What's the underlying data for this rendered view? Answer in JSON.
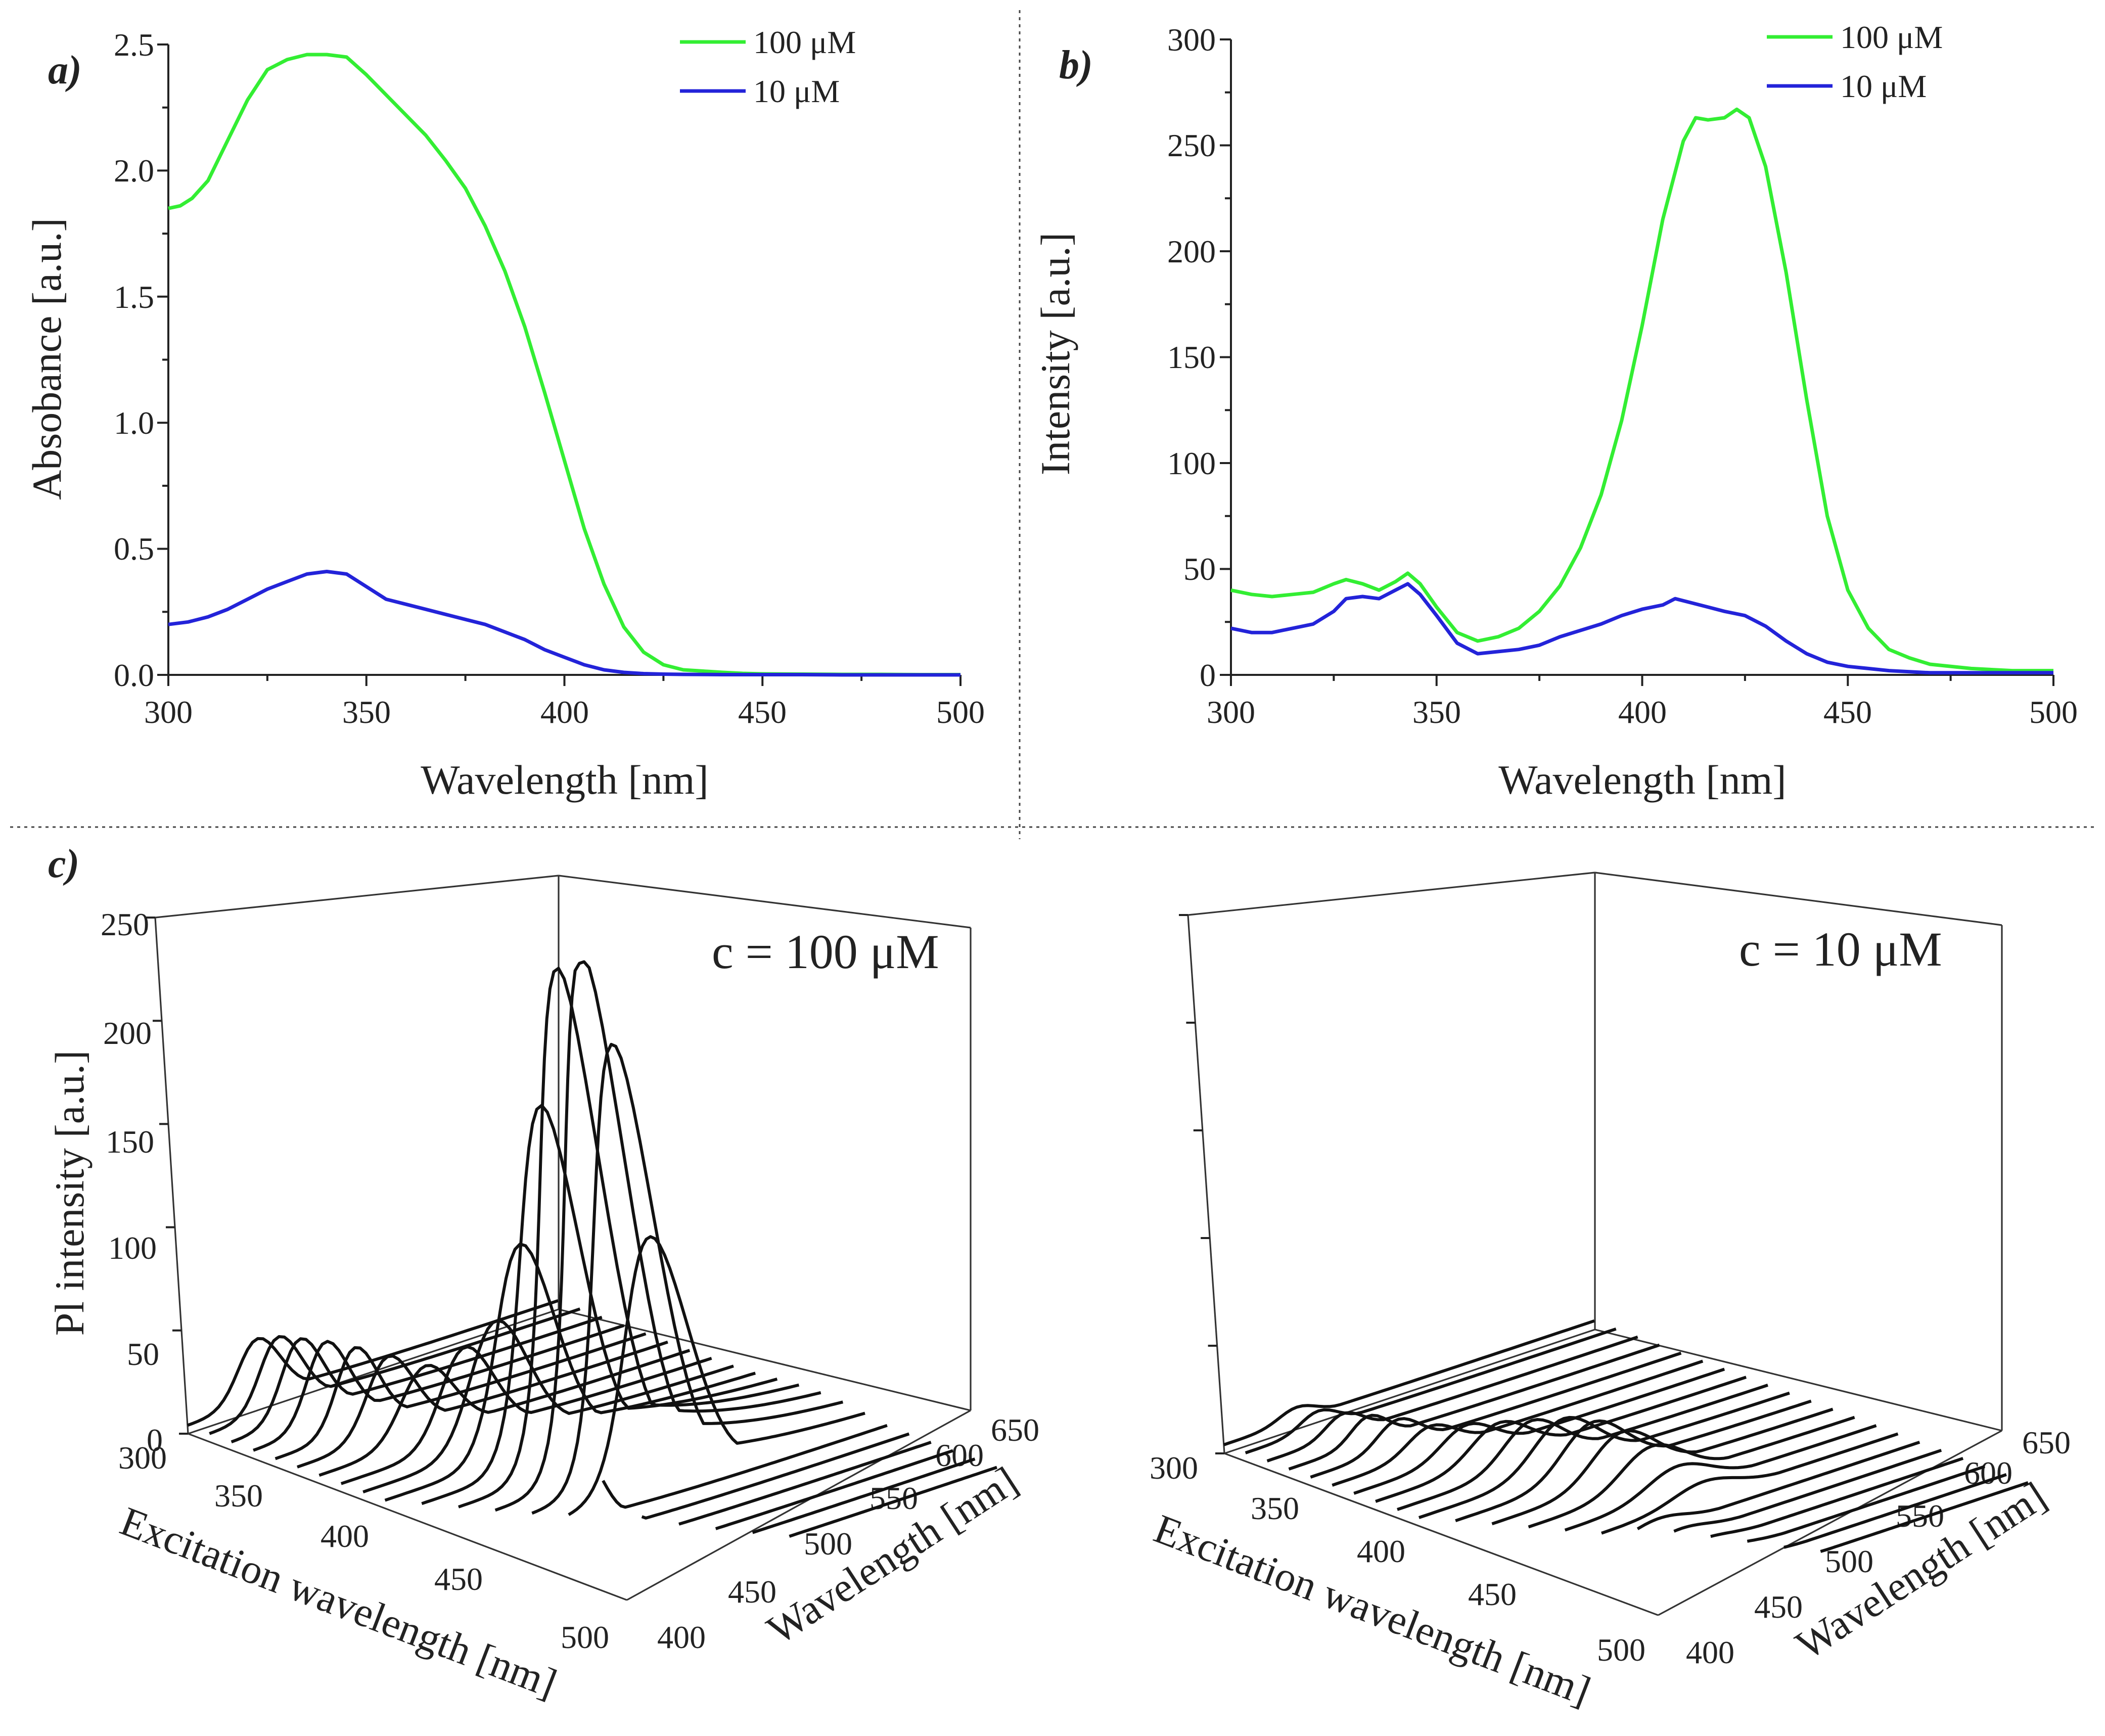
{
  "separators": true,
  "colors": {
    "c100": "#33ee33",
    "c10": "#2323d9",
    "ridge": "#111111"
  },
  "chart_data": [
    {
      "id": "a",
      "type": "line",
      "panel_label": "a)",
      "xlabel": "Wavelength [nm]",
      "ylabel": "Absobance [a.u.]",
      "xlim": [
        300,
        500
      ],
      "ylim": [
        0,
        2.5
      ],
      "xticks": [
        "300",
        "350",
        "400",
        "450",
        "500"
      ],
      "yticks": [
        "0.0",
        "0.5",
        "1.0",
        "1.5",
        "2.0",
        "2.5"
      ],
      "legend": [
        "100 μM",
        "10 μM"
      ],
      "series": [
        {
          "name": "100 μM",
          "color": "#33ee33",
          "x": [
            300,
            303,
            306,
            310,
            315,
            320,
            325,
            330,
            335,
            340,
            345,
            350,
            355,
            360,
            365,
            370,
            375,
            380,
            385,
            390,
            395,
            400,
            405,
            410,
            415,
            420,
            425,
            430,
            435,
            440,
            445,
            450,
            460,
            470,
            480,
            490,
            500
          ],
          "y": [
            1.85,
            1.86,
            1.89,
            1.96,
            2.12,
            2.28,
            2.4,
            2.44,
            2.46,
            2.46,
            2.45,
            2.38,
            2.3,
            2.22,
            2.14,
            2.04,
            1.93,
            1.78,
            1.6,
            1.38,
            1.12,
            0.85,
            0.58,
            0.36,
            0.19,
            0.09,
            0.04,
            0.02,
            0.015,
            0.01,
            0.006,
            0.004,
            0.003,
            0.002,
            0.002,
            0.001,
            0.001
          ]
        },
        {
          "name": "10 μM",
          "color": "#2323d9",
          "x": [
            300,
            305,
            310,
            315,
            320,
            325,
            330,
            335,
            340,
            345,
            350,
            355,
            360,
            365,
            370,
            375,
            380,
            385,
            390,
            395,
            400,
            405,
            410,
            415,
            420,
            425,
            430,
            440,
            450,
            460,
            470,
            480,
            490,
            500
          ],
          "y": [
            0.2,
            0.21,
            0.23,
            0.26,
            0.3,
            0.34,
            0.37,
            0.4,
            0.41,
            0.4,
            0.35,
            0.3,
            0.28,
            0.26,
            0.24,
            0.22,
            0.2,
            0.17,
            0.14,
            0.1,
            0.07,
            0.04,
            0.02,
            0.01,
            0.005,
            0.003,
            0.002,
            0.001,
            0.001,
            0.001,
            0.0,
            0.0,
            0.0,
            0.0
          ]
        }
      ]
    },
    {
      "id": "b",
      "type": "line",
      "panel_label": "b)",
      "xlabel": "Wavelength [nm]",
      "ylabel": "Intensity [a.u.]",
      "xlim": [
        300,
        500
      ],
      "ylim": [
        0,
        300
      ],
      "xticks": [
        "300",
        "350",
        "400",
        "450",
        "500"
      ],
      "yticks": [
        "0",
        "50",
        "100",
        "150",
        "200",
        "250",
        "300"
      ],
      "legend": [
        "100 μM",
        "10 μM"
      ],
      "series": [
        {
          "name": "100 μM",
          "color": "#33ee33",
          "x": [
            300,
            305,
            310,
            315,
            320,
            325,
            328,
            332,
            336,
            340,
            343,
            346,
            350,
            355,
            360,
            365,
            370,
            375,
            380,
            385,
            390,
            395,
            400,
            405,
            410,
            413,
            416,
            420,
            423,
            426,
            430,
            435,
            440,
            445,
            450,
            455,
            460,
            465,
            470,
            480,
            490,
            500
          ],
          "y": [
            40,
            38,
            37,
            38,
            39,
            43,
            45,
            43,
            40,
            44,
            48,
            43,
            32,
            20,
            16,
            18,
            22,
            30,
            42,
            60,
            85,
            120,
            165,
            215,
            252,
            263,
            262,
            263,
            267,
            263,
            240,
            190,
            130,
            75,
            40,
            22,
            12,
            8,
            5,
            3,
            2,
            2
          ]
        },
        {
          "name": "10 μM",
          "color": "#2323d9",
          "x": [
            300,
            305,
            310,
            315,
            320,
            325,
            328,
            332,
            336,
            340,
            343,
            346,
            350,
            355,
            360,
            365,
            370,
            375,
            380,
            385,
            390,
            395,
            400,
            405,
            408,
            412,
            416,
            420,
            425,
            430,
            435,
            440,
            445,
            450,
            455,
            460,
            470,
            480,
            490,
            500
          ],
          "y": [
            22,
            20,
            20,
            22,
            24,
            30,
            36,
            37,
            36,
            40,
            43,
            38,
            28,
            15,
            10,
            11,
            12,
            14,
            18,
            21,
            24,
            28,
            31,
            33,
            36,
            34,
            32,
            30,
            28,
            23,
            16,
            10,
            6,
            4,
            3,
            2,
            1,
            1,
            1,
            1
          ]
        }
      ]
    },
    {
      "id": "c1",
      "type": "line",
      "subtype": "3d-waterfall",
      "panel_label": "c)",
      "title": "c = 100 μM",
      "zlabel": "Pl intensity [a.u.]",
      "xlabel": "Excitation wavelength [nm]",
      "ylabel": "Wavelength [nm]",
      "zlim": [
        0,
        250
      ],
      "zticks": [
        "0",
        "50",
        "100",
        "150",
        "200",
        "250"
      ],
      "xticks": [
        "300",
        "350",
        "400",
        "450",
        "500"
      ],
      "yticks": [
        "400",
        "450",
        "500",
        "550",
        "600",
        "650"
      ],
      "excitation": [
        300,
        310,
        320,
        330,
        340,
        350,
        360,
        370,
        380,
        390,
        400,
        410,
        420,
        430,
        440,
        450,
        460,
        470,
        480,
        490,
        500
      ],
      "ridge_peaks": [
        {
          "n": 30,
          "c": 0.2,
          "w": 0.08
        },
        {
          "n": 35,
          "c": 0.2,
          "w": 0.08
        },
        {
          "n": 38,
          "c": 0.2,
          "w": 0.08
        },
        {
          "n": 40,
          "c": 0.21,
          "w": 0.08
        },
        {
          "n": 40,
          "c": 0.23,
          "w": 0.08
        },
        {
          "n": 38,
          "c": 0.26,
          "w": 0.09
        },
        {
          "n": 35,
          "c": 0.3,
          "w": 0.1
        },
        {
          "n": 45,
          "c": 0.35,
          "w": 0.1
        },
        {
          "n": 60,
          "c": 0.38,
          "w": 0.11
        },
        {
          "n": 100,
          "c": 0.4,
          "w": 0.11
        },
        {
          "n": 170,
          "c": 0.42,
          "w": 0.11
        },
        {
          "n": 240,
          "c": 0.43,
          "w": 0.11
        },
        {
          "n": 250,
          "c": 0.44,
          "w": 0.11
        },
        {
          "n": 210,
          "c": 0.45,
          "w": 0.11
        },
        {
          "n": 120,
          "c": 0.46,
          "w": 0.12
        },
        {
          "n": 30,
          "c": 0.2,
          "w": 0.06
        },
        {
          "n": 20,
          "c": 0.2,
          "w": 0.06
        },
        {
          "n": 15,
          "c": 0.2,
          "w": 0.06
        },
        {
          "n": 10,
          "c": 0.2,
          "w": 0.06
        },
        {
          "n": 8,
          "c": 0.2,
          "w": 0.06
        },
        {
          "n": 6,
          "c": 0.2,
          "w": 0.06
        }
      ]
    },
    {
      "id": "c2",
      "type": "line",
      "subtype": "3d-waterfall",
      "title": "c = 10 μM",
      "xlabel": "Excitation wavelength [nm]",
      "ylabel": "Wavelength [nm]",
      "zlim": [
        0,
        250
      ],
      "xticks": [
        "300",
        "350",
        "400",
        "450",
        "500"
      ],
      "yticks": [
        "400",
        "450",
        "500",
        "550",
        "600",
        "650"
      ],
      "excitation": [
        300,
        310,
        320,
        330,
        340,
        350,
        360,
        370,
        380,
        390,
        400,
        410,
        420,
        430,
        440,
        450,
        460,
        470,
        480,
        490,
        500
      ],
      "ridge_peaks": [
        {
          "n": 6,
          "c": 0.2,
          "w": 0.07
        },
        {
          "n": 8,
          "c": 0.2,
          "w": 0.07
        },
        {
          "n": 10,
          "c": 0.21,
          "w": 0.07
        },
        {
          "n": 12,
          "c": 0.22,
          "w": 0.07
        },
        {
          "n": 13,
          "c": 0.24,
          "w": 0.08
        },
        {
          "n": 12,
          "c": 0.27,
          "w": 0.09
        },
        {
          "n": 14,
          "c": 0.31,
          "w": 0.1
        },
        {
          "n": 17,
          "c": 0.34,
          "w": 0.11
        },
        {
          "n": 20,
          "c": 0.37,
          "w": 0.11
        },
        {
          "n": 23,
          "c": 0.4,
          "w": 0.12
        },
        {
          "n": 24,
          "c": 0.42,
          "w": 0.12
        },
        {
          "n": 22,
          "c": 0.44,
          "w": 0.12
        },
        {
          "n": 18,
          "c": 0.46,
          "w": 0.12
        },
        {
          "n": 12,
          "c": 0.47,
          "w": 0.12
        },
        {
          "n": 8,
          "c": 0.48,
          "w": 0.12
        },
        {
          "n": 5,
          "c": 0.3,
          "w": 0.1
        },
        {
          "n": 4,
          "c": 0.3,
          "w": 0.1
        },
        {
          "n": 3,
          "c": 0.3,
          "w": 0.1
        },
        {
          "n": 3,
          "c": 0.3,
          "w": 0.1
        },
        {
          "n": 2,
          "c": 0.3,
          "w": 0.1
        },
        {
          "n": 2,
          "c": 0.3,
          "w": 0.1
        }
      ]
    }
  ]
}
